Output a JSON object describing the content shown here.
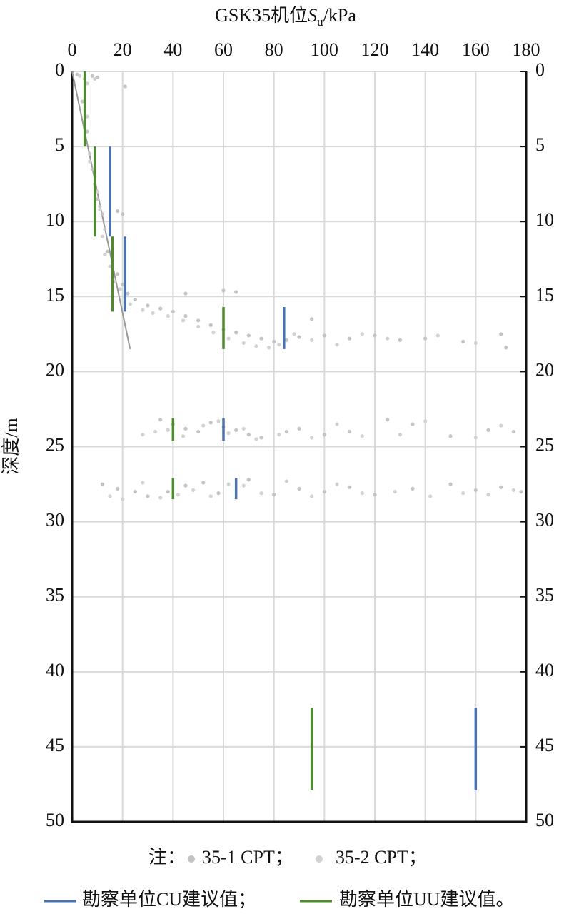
{
  "chart_data": {
    "type": "scatter",
    "title": {
      "prefix": "GSK35机位",
      "symbol": "S",
      "subscript": "u",
      "unit": "/kPa"
    },
    "y_label": "深度/m",
    "note_label": "注：",
    "xlim": [
      0,
      180
    ],
    "xticks": [
      0,
      20,
      40,
      60,
      80,
      100,
      120,
      140,
      160,
      180
    ],
    "ylim": [
      0,
      50
    ],
    "yticks": [
      0,
      5,
      10,
      15,
      20,
      25,
      30,
      35,
      40,
      45,
      50
    ],
    "y_inverted": true,
    "mirror_y_ticks": true,
    "grid": true,
    "trend_line": {
      "color": "#999999",
      "x": [
        0,
        23
      ],
      "y": [
        0,
        18.5
      ]
    },
    "series": [
      {
        "name": "35-1 CPT；",
        "kind": "points",
        "color": "#c4c4c4",
        "x": [
          2,
          5,
          8,
          10,
          21,
          4,
          6,
          7,
          8,
          9,
          10,
          11,
          12,
          18,
          20,
          13,
          14,
          16,
          18,
          20,
          22,
          25,
          30,
          35,
          40,
          45,
          50,
          55,
          60,
          65,
          70,
          75,
          80,
          85,
          90,
          100,
          110,
          120,
          130,
          140,
          155,
          170,
          172,
          45,
          60,
          65,
          95,
          35,
          40,
          45,
          50,
          55,
          60,
          65,
          70,
          75,
          85,
          90,
          100,
          110,
          125,
          135,
          150,
          165,
          175,
          12,
          18,
          25,
          30,
          38,
          45,
          52,
          58,
          70,
          80,
          90,
          100,
          110,
          120,
          135,
          150,
          160,
          170,
          178
        ],
        "y": [
          0.2,
          0.5,
          0.3,
          0.4,
          1,
          2,
          4,
          5.5,
          6.5,
          7.5,
          8.5,
          9,
          9.5,
          9.3,
          9.5,
          10.5,
          12,
          12.7,
          13.5,
          14.2,
          14.8,
          15.2,
          15.6,
          15.8,
          16,
          16.3,
          16.6,
          16.9,
          17.2,
          17.4,
          17.6,
          17.8,
          18,
          17.9,
          17.7,
          17.6,
          17.8,
          17.6,
          17.9,
          17.8,
          18,
          17.5,
          18.4,
          14.8,
          14.6,
          14.7,
          16.5,
          23.2,
          23.5,
          23.8,
          24,
          23.4,
          23.7,
          23.9,
          24.2,
          24.4,
          24,
          23.8,
          24.2,
          24,
          23.2,
          23.5,
          24.3,
          23.9,
          24,
          27.5,
          27.8,
          28,
          28.3,
          28,
          27.6,
          27.4,
          28.1,
          27.2,
          28.2,
          27.8,
          28,
          27.7,
          28.2,
          27.8,
          27.5,
          27.9,
          27.7,
          28
        ]
      },
      {
        "name": "35-2 CPT；",
        "kind": "points",
        "color": "#d2d2d2",
        "x": [
          3,
          6,
          9,
          6,
          7,
          9,
          10,
          11,
          12,
          13,
          15,
          17,
          19,
          23,
          28,
          32,
          38,
          44,
          50,
          56,
          62,
          68,
          73,
          78,
          82,
          88,
          95,
          105,
          115,
          125,
          145,
          160,
          28,
          33,
          38,
          44,
          52,
          58,
          62,
          68,
          73,
          82,
          95,
          105,
          115,
          130,
          140,
          160,
          170,
          15,
          20,
          28,
          35,
          42,
          48,
          55,
          62,
          68,
          75,
          85,
          95,
          105,
          115,
          128,
          142,
          155,
          165,
          175
        ],
        "y": [
          0.3,
          0.8,
          0.5,
          3,
          6,
          7,
          8,
          9.2,
          11,
          12.2,
          13,
          14,
          14.5,
          15.5,
          15.9,
          16.1,
          16.3,
          16.6,
          17,
          17.4,
          17.8,
          18.1,
          18.3,
          18.4,
          18.2,
          17.5,
          17.9,
          18.2,
          17.5,
          17.8,
          17.6,
          18.1,
          24.2,
          24,
          23.9,
          24.3,
          23.6,
          23.3,
          24.1,
          23.8,
          24.5,
          24.2,
          24.4,
          23.5,
          24.3,
          24.2,
          23.3,
          24.4,
          23.6,
          28.3,
          28.5,
          27.4,
          28.4,
          28.2,
          27.9,
          28.3,
          27.5,
          27.6,
          28.1,
          27.3,
          28.3,
          27.5,
          28.1,
          28,
          28.3,
          28.1,
          28.2,
          27.9
        ]
      },
      {
        "name": "勘察单位CU建议值；",
        "kind": "segments",
        "color": "#4a72b0",
        "segments": [
          {
            "x": 15,
            "y": [
              5,
              11
            ]
          },
          {
            "x": 21,
            "y": [
              11,
              16
            ]
          },
          {
            "x": 84,
            "y": [
              15.7,
              18.5
            ]
          },
          {
            "x": 60,
            "y": [
              23.1,
              24.6
            ]
          },
          {
            "x": 65,
            "y": [
              27.1,
              28.5
            ]
          },
          {
            "x": 160,
            "y": [
              42.4,
              47.9
            ]
          }
        ]
      },
      {
        "name": "勘察单位UU建议值。",
        "kind": "segments",
        "color": "#4e8a2e",
        "segments": [
          {
            "x": 5,
            "y": [
              0,
              5
            ]
          },
          {
            "x": 9,
            "y": [
              5,
              11
            ]
          },
          {
            "x": 16,
            "y": [
              11,
              16
            ]
          },
          {
            "x": 60,
            "y": [
              15.7,
              18.5
            ]
          },
          {
            "x": 40,
            "y": [
              23.1,
              24.6
            ]
          },
          {
            "x": 40,
            "y": [
              27.1,
              28.5
            ]
          },
          {
            "x": 95,
            "y": [
              42.4,
              47.9
            ]
          }
        ]
      }
    ]
  }
}
